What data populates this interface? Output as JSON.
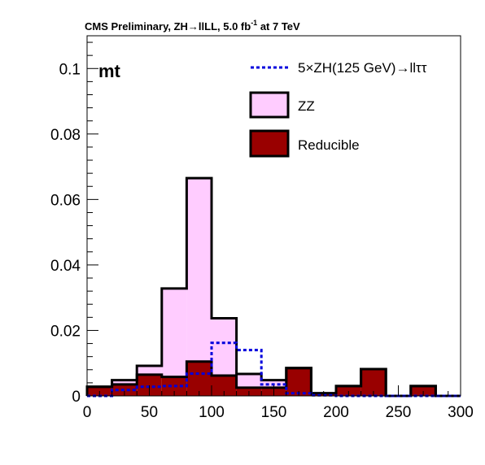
{
  "chart_data": {
    "type": "bar",
    "header": "CMS Preliminary,  ZH→llLL, 5.0 fb",
    "header_sup": "-1",
    "header_tail": " at 7 TeV",
    "channel_label": "mt",
    "xlim": [
      0,
      300
    ],
    "ylim": [
      0,
      0.11
    ],
    "x_ticks": [
      0,
      50,
      100,
      150,
      200,
      250,
      300
    ],
    "x_tick_labels": [
      "0",
      "50",
      "100",
      "150",
      "200",
      "250",
      "300"
    ],
    "y_ticks": [
      0,
      0.02,
      0.04,
      0.06,
      0.08,
      0.1
    ],
    "y_tick_labels": [
      "0",
      "0.02",
      "0.04",
      "0.06",
      "0.08",
      "0.1"
    ],
    "bin_edges": [
      0,
      20,
      40,
      60,
      80,
      100,
      120,
      140,
      160,
      180,
      200,
      220,
      240,
      260,
      280,
      300
    ],
    "stacked_series": [
      {
        "name": "Reducible",
        "color": "#990000",
        "values": [
          0.0028,
          0.0035,
          0.0065,
          0.0058,
          0.0105,
          0.0062,
          0.0025,
          0.0025,
          0.0085,
          0.0008,
          0.003,
          0.0082,
          0.0,
          0.003,
          0.0
        ]
      },
      {
        "name": "ZZ",
        "color": "#ffccff",
        "values": [
          0.0,
          0.0013,
          0.0027,
          0.027,
          0.056,
          0.0175,
          0.0042,
          0.0023,
          0.0,
          0.0,
          0.0,
          0.0,
          0.0,
          0.0,
          0.0
        ]
      }
    ],
    "signal": {
      "name": "5×ZH(125 GeV)→llττ",
      "color": "#0000dd",
      "values": [
        0.0,
        0.0018,
        0.0028,
        0.003,
        0.0068,
        0.0162,
        0.014,
        0.0035,
        0.0008,
        0.0002,
        0.0,
        0.0,
        0.0,
        0.0,
        0.0
      ]
    },
    "legend_position": "top-right"
  }
}
